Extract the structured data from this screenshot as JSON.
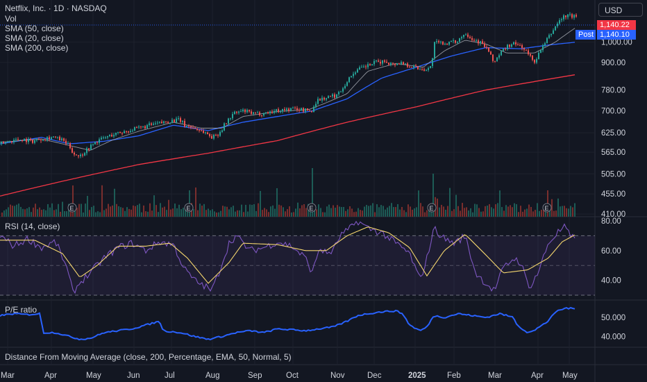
{
  "header": {
    "title": "Netflix, Inc. · 1D · NASDAQ",
    "indicators": [
      "Vol",
      "SMA (50, close)",
      "SMA (20, close)",
      "SMA (200, close)"
    ],
    "currency": "USD"
  },
  "price_tags": {
    "last": "1,140.22",
    "post_label": "Post",
    "post": "1,140.10"
  },
  "panes": {
    "rsi_title": "RSI (14, close)",
    "pe_title": "P/E ratio",
    "dfma_title": "Distance From Moving Average (close, 200, Percentage, EMA, 50, Normal, 5)"
  },
  "colors": {
    "background": "#131722",
    "up": "#26a69a",
    "down": "#ef5350",
    "sma50": "#2962ff",
    "sma20": "#b2b5be",
    "sma200": "#f23645",
    "rsi": "#7e57c2",
    "rsi_ma": "#f5d76e",
    "pe": "#2962ff"
  },
  "chart_data": [
    {
      "type": "candlestick",
      "title": "Netflix, Inc. · 1D · NASDAQ",
      "x_ticks": [
        "Mar",
        "Apr",
        "May",
        "Jun",
        "Jul",
        "Aug",
        "Sep",
        "Oct",
        "Nov",
        "Dec",
        "2025",
        "Feb",
        "Mar",
        "Apr",
        "May"
      ],
      "y_ticks": [
        410,
        455,
        505,
        565,
        625,
        700,
        780,
        900,
        1000
      ],
      "y_scale": "log",
      "ylim": [
        400,
        1200
      ],
      "close_path": [
        [
          0,
          590
        ],
        [
          15,
          600
        ],
        [
          30,
          605
        ],
        [
          45,
          598
        ],
        [
          60,
          607
        ],
        [
          75,
          612
        ],
        [
          90,
          600
        ],
        [
          100,
          580
        ],
        [
          105,
          560
        ],
        [
          115,
          555
        ],
        [
          125,
          575
        ],
        [
          140,
          600
        ],
        [
          160,
          618
        ],
        [
          180,
          630
        ],
        [
          200,
          640
        ],
        [
          215,
          650
        ],
        [
          230,
          657
        ],
        [
          245,
          665
        ],
        [
          258,
          668
        ],
        [
          265,
          650
        ],
        [
          280,
          640
        ],
        [
          295,
          625
        ],
        [
          305,
          610
        ],
        [
          315,
          625
        ],
        [
          325,
          660
        ],
        [
          335,
          690
        ],
        [
          350,
          700
        ],
        [
          365,
          688
        ],
        [
          380,
          692
        ],
        [
          395,
          700
        ],
        [
          410,
          705
        ],
        [
          425,
          708
        ],
        [
          440,
          702
        ],
        [
          448,
          698
        ],
        [
          455,
          740
        ],
        [
          470,
          750
        ],
        [
          485,
          760
        ],
        [
          495,
          800
        ],
        [
          510,
          860
        ],
        [
          525,
          880
        ],
        [
          540,
          900
        ],
        [
          555,
          905
        ],
        [
          565,
          890
        ],
        [
          575,
          900
        ],
        [
          590,
          885
        ],
        [
          605,
          870
        ],
        [
          615,
          870
        ],
        [
          620,
          880
        ],
        [
          625,
          995
        ],
        [
          640,
          995
        ],
        [
          655,
          1000
        ],
        [
          670,
          1050
        ],
        [
          678,
          1020
        ],
        [
          690,
          1000
        ],
        [
          700,
          970
        ],
        [
          710,
          900
        ],
        [
          720,
          945
        ],
        [
          730,
          980
        ],
        [
          740,
          990
        ],
        [
          750,
          980
        ],
        [
          760,
          940
        ],
        [
          768,
          900
        ],
        [
          775,
          940
        ],
        [
          785,
          1000
        ],
        [
          795,
          1060
        ],
        [
          805,
          1120
        ],
        [
          815,
          1150
        ],
        [
          822,
          1145
        ],
        [
          830,
          1140
        ]
      ],
      "series": [
        {
          "name": "SMA (50, close)",
          "path": [
            [
              0,
              590
            ],
            [
              60,
              610
            ],
            [
              100,
              590
            ],
            [
              150,
              598
            ],
            [
              200,
              615
            ],
            [
              250,
              650
            ],
            [
              300,
              632
            ],
            [
              350,
              660
            ],
            [
              400,
              680
            ],
            [
              450,
              700
            ],
            [
              500,
              745
            ],
            [
              550,
              830
            ],
            [
              600,
              878
            ],
            [
              650,
              930
            ],
            [
              700,
              972
            ],
            [
              750,
              966
            ],
            [
              790,
              985
            ],
            [
              830,
              1000
            ]
          ]
        },
        {
          "name": "SMA (20, close)",
          "path": [
            [
              0,
              595
            ],
            [
              60,
              605
            ],
            [
              100,
              585
            ],
            [
              130,
              570
            ],
            [
              160,
              600
            ],
            [
              200,
              630
            ],
            [
              250,
              660
            ],
            [
              290,
              640
            ],
            [
              320,
              640
            ],
            [
              350,
              680
            ],
            [
              400,
              698
            ],
            [
              445,
              705
            ],
            [
              470,
              730
            ],
            [
              500,
              765
            ],
            [
              530,
              860
            ],
            [
              570,
              895
            ],
            [
              610,
              878
            ],
            [
              640,
              955
            ],
            [
              670,
              1010
            ],
            [
              700,
              990
            ],
            [
              730,
              945
            ],
            [
              770,
              945
            ],
            [
              800,
              1000
            ],
            [
              830,
              1080
            ]
          ]
        },
        {
          "name": "SMA (200, close)",
          "path": [
            [
              0,
              450
            ],
            [
              100,
              490
            ],
            [
              200,
              530
            ],
            [
              300,
              562
            ],
            [
              400,
              600
            ],
            [
              500,
              660
            ],
            [
              600,
              715
            ],
            [
              700,
              780
            ],
            [
              760,
              810
            ],
            [
              830,
              845
            ]
          ]
        }
      ],
      "volume_tick_label": "410.00"
    },
    {
      "type": "line",
      "title": "RSI (14, close)",
      "y_ticks": [
        40,
        60,
        80
      ],
      "ylim": [
        30,
        80
      ],
      "bands": [
        30,
        50,
        70
      ],
      "series": [
        {
          "name": "RSI",
          "path": [
            [
              0,
              70
            ],
            [
              20,
              63
            ],
            [
              40,
              68
            ],
            [
              60,
              62
            ],
            [
              80,
              66
            ],
            [
              95,
              50
            ],
            [
              105,
              32
            ],
            [
              118,
              40
            ],
            [
              130,
              45
            ],
            [
              150,
              55
            ],
            [
              170,
              62
            ],
            [
              190,
              65
            ],
            [
              210,
              60
            ],
            [
              230,
              66
            ],
            [
              250,
              64
            ],
            [
              265,
              48
            ],
            [
              280,
              40
            ],
            [
              295,
              36
            ],
            [
              305,
              33
            ],
            [
              315,
              45
            ],
            [
              330,
              65
            ],
            [
              340,
              70
            ],
            [
              360,
              60
            ],
            [
              380,
              62
            ],
            [
              400,
              66
            ],
            [
              420,
              63
            ],
            [
              440,
              55
            ],
            [
              450,
              45
            ],
            [
              460,
              62
            ],
            [
              470,
              58
            ],
            [
              480,
              60
            ],
            [
              490,
              70
            ],
            [
              505,
              75
            ],
            [
              515,
              80
            ],
            [
              530,
              75
            ],
            [
              550,
              72
            ],
            [
              570,
              65
            ],
            [
              590,
              58
            ],
            [
              605,
              40
            ],
            [
              615,
              55
            ],
            [
              625,
              75
            ],
            [
              640,
              68
            ],
            [
              655,
              65
            ],
            [
              670,
              70
            ],
            [
              685,
              45
            ],
            [
              700,
              38
            ],
            [
              712,
              33
            ],
            [
              725,
              48
            ],
            [
              740,
              55
            ],
            [
              750,
              52
            ],
            [
              762,
              35
            ],
            [
              775,
              45
            ],
            [
              790,
              65
            ],
            [
              805,
              73
            ],
            [
              815,
              76
            ],
            [
              822,
              68
            ],
            [
              830,
              70
            ]
          ]
        },
        {
          "name": "RSI-based MA",
          "path": [
            [
              0,
              67
            ],
            [
              50,
              67
            ],
            [
              90,
              58
            ],
            [
              115,
              42
            ],
            [
              140,
              50
            ],
            [
              170,
              63
            ],
            [
              210,
              63
            ],
            [
              245,
              65
            ],
            [
              270,
              55
            ],
            [
              300,
              38
            ],
            [
              330,
              52
            ],
            [
              350,
              65
            ],
            [
              400,
              64
            ],
            [
              440,
              60
            ],
            [
              470,
              60
            ],
            [
              500,
              70
            ],
            [
              530,
              76
            ],
            [
              560,
              72
            ],
            [
              590,
              62
            ],
            [
              615,
              43
            ],
            [
              640,
              60
            ],
            [
              670,
              71
            ],
            [
              700,
              57
            ],
            [
              725,
              45
            ],
            [
              760,
              47
            ],
            [
              790,
              55
            ],
            [
              810,
              66
            ],
            [
              830,
              71
            ]
          ]
        }
      ]
    },
    {
      "type": "line",
      "title": "P/E ratio",
      "y_ticks": [
        40,
        50
      ],
      "ylim": [
        35,
        57
      ],
      "series": [
        {
          "name": "P/E ratio",
          "path": [
            [
              0,
              51
            ],
            [
              20,
              52
            ],
            [
              40,
              51.5
            ],
            [
              58,
              52
            ],
            [
              62,
              42
            ],
            [
              80,
              42
            ],
            [
              100,
              40
            ],
            [
              115,
              38.5
            ],
            [
              130,
              39
            ],
            [
              150,
              42
            ],
            [
              170,
              43
            ],
            [
              190,
              44
            ],
            [
              210,
              46
            ],
            [
              230,
              48
            ],
            [
              235,
              43
            ],
            [
              260,
              42
            ],
            [
              280,
              40
            ],
            [
              300,
              38.5
            ],
            [
              320,
              40
            ],
            [
              340,
              42
            ],
            [
              360,
              43
            ],
            [
              380,
              42
            ],
            [
              400,
              44
            ],
            [
              420,
              43.5
            ],
            [
              440,
              43
            ],
            [
              460,
              44
            ],
            [
              480,
              45
            ],
            [
              500,
              48
            ],
            [
              515,
              51
            ],
            [
              530,
              52
            ],
            [
              550,
              53
            ],
            [
              570,
              53.5
            ],
            [
              580,
              52
            ],
            [
              590,
              46
            ],
            [
              605,
              43
            ],
            [
              615,
              45
            ],
            [
              625,
              51
            ],
            [
              640,
              50
            ],
            [
              660,
              52
            ],
            [
              680,
              51
            ],
            [
              700,
              50
            ],
            [
              720,
              52
            ],
            [
              740,
              50
            ],
            [
              745,
              46
            ],
            [
              760,
              42
            ],
            [
              770,
              43
            ],
            [
              780,
              46
            ],
            [
              790,
              48
            ],
            [
              800,
              53
            ],
            [
              815,
              55
            ],
            [
              830,
              54.5
            ]
          ]
        }
      ]
    }
  ]
}
